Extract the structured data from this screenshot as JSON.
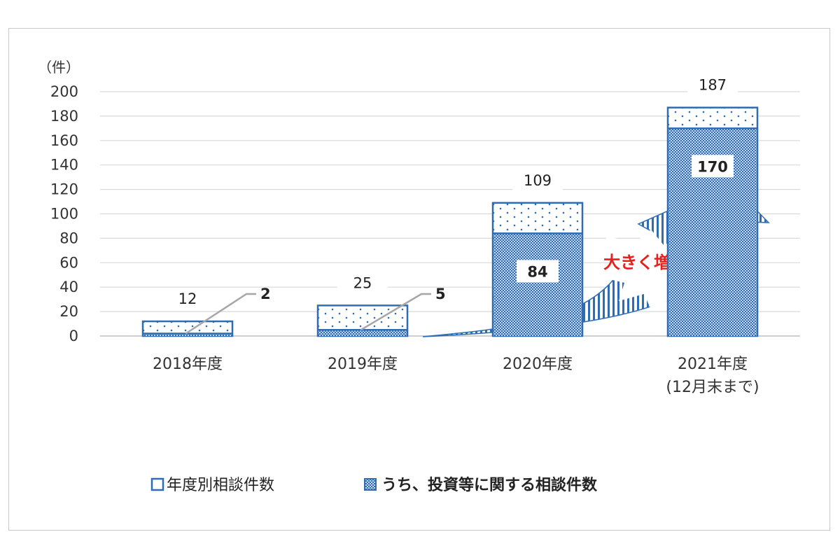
{
  "chart_data": {
    "type": "bar",
    "unit": "（件）",
    "categories": [
      "2018年度",
      "2019年度",
      "2020年度",
      "2021年度"
    ],
    "category_notes": [
      "",
      "",
      "",
      "(12月末まで)"
    ],
    "ylim": [
      0,
      200
    ],
    "yticks": [
      0,
      20,
      40,
      60,
      80,
      100,
      120,
      140,
      160,
      180,
      200
    ],
    "grid": true,
    "legend_position": "bottom",
    "series": [
      {
        "name": "年度別相談件数",
        "values": [
          12,
          25,
          109,
          187
        ],
        "color": "#2e6db4"
      },
      {
        "name": "うち、投資等に関する相談件数",
        "values": [
          2,
          5,
          84,
          170
        ],
        "color": "#2e6db4"
      }
    ],
    "annotation": {
      "text": "大きく増加",
      "color": "#e8201c"
    }
  }
}
